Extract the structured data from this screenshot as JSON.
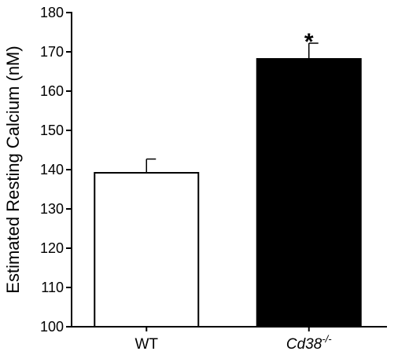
{
  "chart_data": {
    "type": "bar",
    "title": "",
    "xlabel": "",
    "ylabel": "Estimated Resting Calcium (nM)",
    "ylim": [
      100,
      180
    ],
    "yticks": [
      100,
      110,
      120,
      130,
      140,
      150,
      160,
      170,
      180
    ],
    "grid": false,
    "legend": "none",
    "categories": [
      {
        "label": "WT",
        "superscript": "",
        "italic": false
      },
      {
        "label": "Cd38",
        "superscript": "-/-",
        "italic": true
      }
    ],
    "values": [
      139.2,
      168.2
    ],
    "error": [
      3.5,
      4.0
    ],
    "bar_fill": [
      "#ffffff",
      "#000000"
    ],
    "bar_stroke": "#000000",
    "annotations": [
      {
        "category_index": 1,
        "text": "*"
      }
    ]
  }
}
